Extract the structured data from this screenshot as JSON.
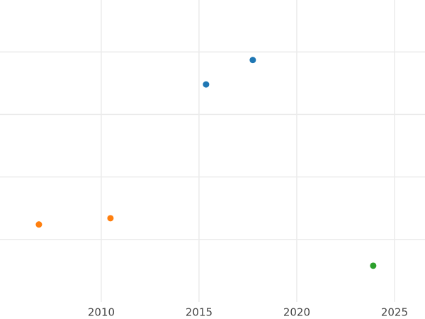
{
  "chart_data": {
    "type": "scatter",
    "series": [
      {
        "color": "#1f77b4",
        "x": [
          2015.36,
          2017.75
        ],
        "values": [
          3.48,
          3.87
        ]
      },
      {
        "color": "#ff7f0e",
        "x": [
          2006.81,
          2010.47
        ],
        "values": [
          1.24,
          1.34
        ]
      },
      {
        "color": "#2ca02c",
        "x": [
          2023.91
        ],
        "values": [
          0.58
        ]
      }
    ],
    "xlim": [
      2004.82,
      2026.56
    ],
    "xticks": [
      2010,
      2015,
      2020,
      2025
    ],
    "ylim": [
      0,
      4.83
    ],
    "yticks": [
      1,
      2,
      3,
      4
    ],
    "grid": true
  }
}
